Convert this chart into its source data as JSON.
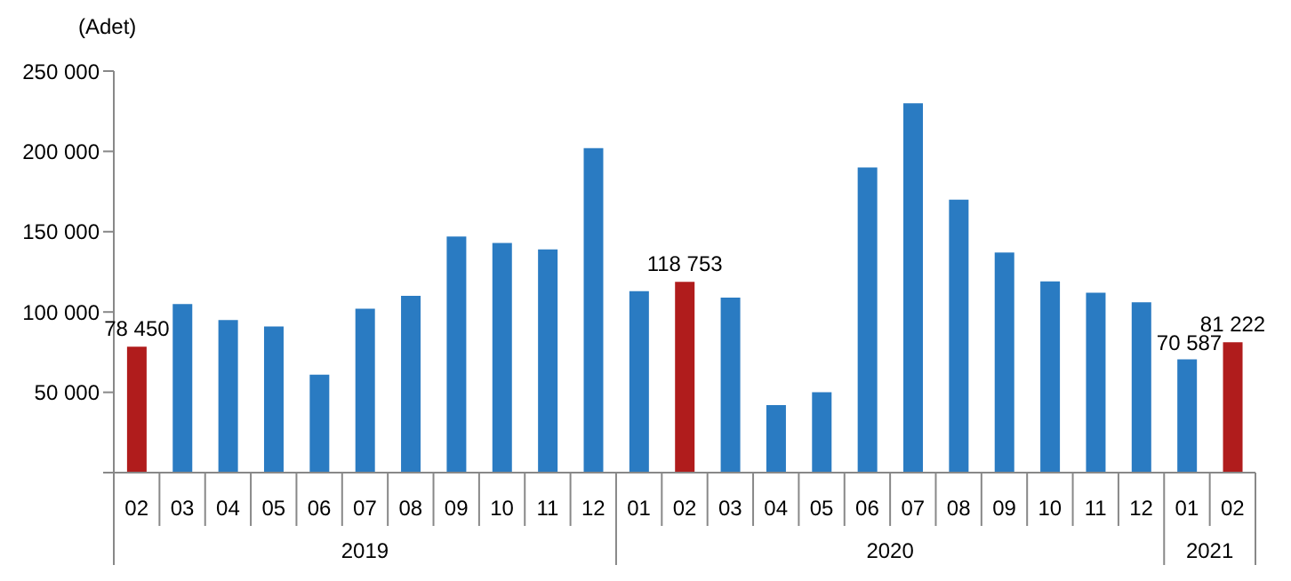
{
  "chart_data": {
    "type": "bar",
    "ylabel": "(Adet)",
    "categories": [
      "02",
      "03",
      "04",
      "05",
      "06",
      "07",
      "08",
      "09",
      "10",
      "11",
      "12",
      "01",
      "02",
      "03",
      "04",
      "05",
      "06",
      "07",
      "08",
      "09",
      "10",
      "11",
      "12",
      "01",
      "02"
    ],
    "values": [
      78450,
      105000,
      95000,
      91000,
      61000,
      102000,
      110000,
      147000,
      143000,
      139000,
      202000,
      113000,
      118753,
      109000,
      42000,
      50000,
      190000,
      230000,
      170000,
      137000,
      119000,
      112000,
      106000,
      70587,
      81222
    ],
    "colors": [
      "#b01c1c",
      "#2a7bc2",
      "#2a7bc2",
      "#2a7bc2",
      "#2a7bc2",
      "#2a7bc2",
      "#2a7bc2",
      "#2a7bc2",
      "#2a7bc2",
      "#2a7bc2",
      "#2a7bc2",
      "#2a7bc2",
      "#b01c1c",
      "#2a7bc2",
      "#2a7bc2",
      "#2a7bc2",
      "#2a7bc2",
      "#2a7bc2",
      "#2a7bc2",
      "#2a7bc2",
      "#2a7bc2",
      "#2a7bc2",
      "#2a7bc2",
      "#2a7bc2",
      "#b01c1c"
    ],
    "value_labels": [
      "78 450",
      null,
      null,
      null,
      null,
      null,
      null,
      null,
      null,
      null,
      null,
      null,
      "118 753",
      null,
      null,
      null,
      null,
      null,
      null,
      null,
      null,
      null,
      null,
      "70 587",
      "81 222"
    ],
    "ylim": [
      0,
      250000
    ],
    "yticks": [
      {
        "value": 0,
        "label": null
      },
      {
        "value": 50000,
        "label": "50 000"
      },
      {
        "value": 100000,
        "label": "100 000"
      },
      {
        "value": 150000,
        "label": "150 000"
      },
      {
        "value": 200000,
        "label": "200 000"
      },
      {
        "value": 250000,
        "label": "250 000"
      }
    ],
    "annotations": [
      "2019",
      "2020",
      "2021"
    ]
  }
}
